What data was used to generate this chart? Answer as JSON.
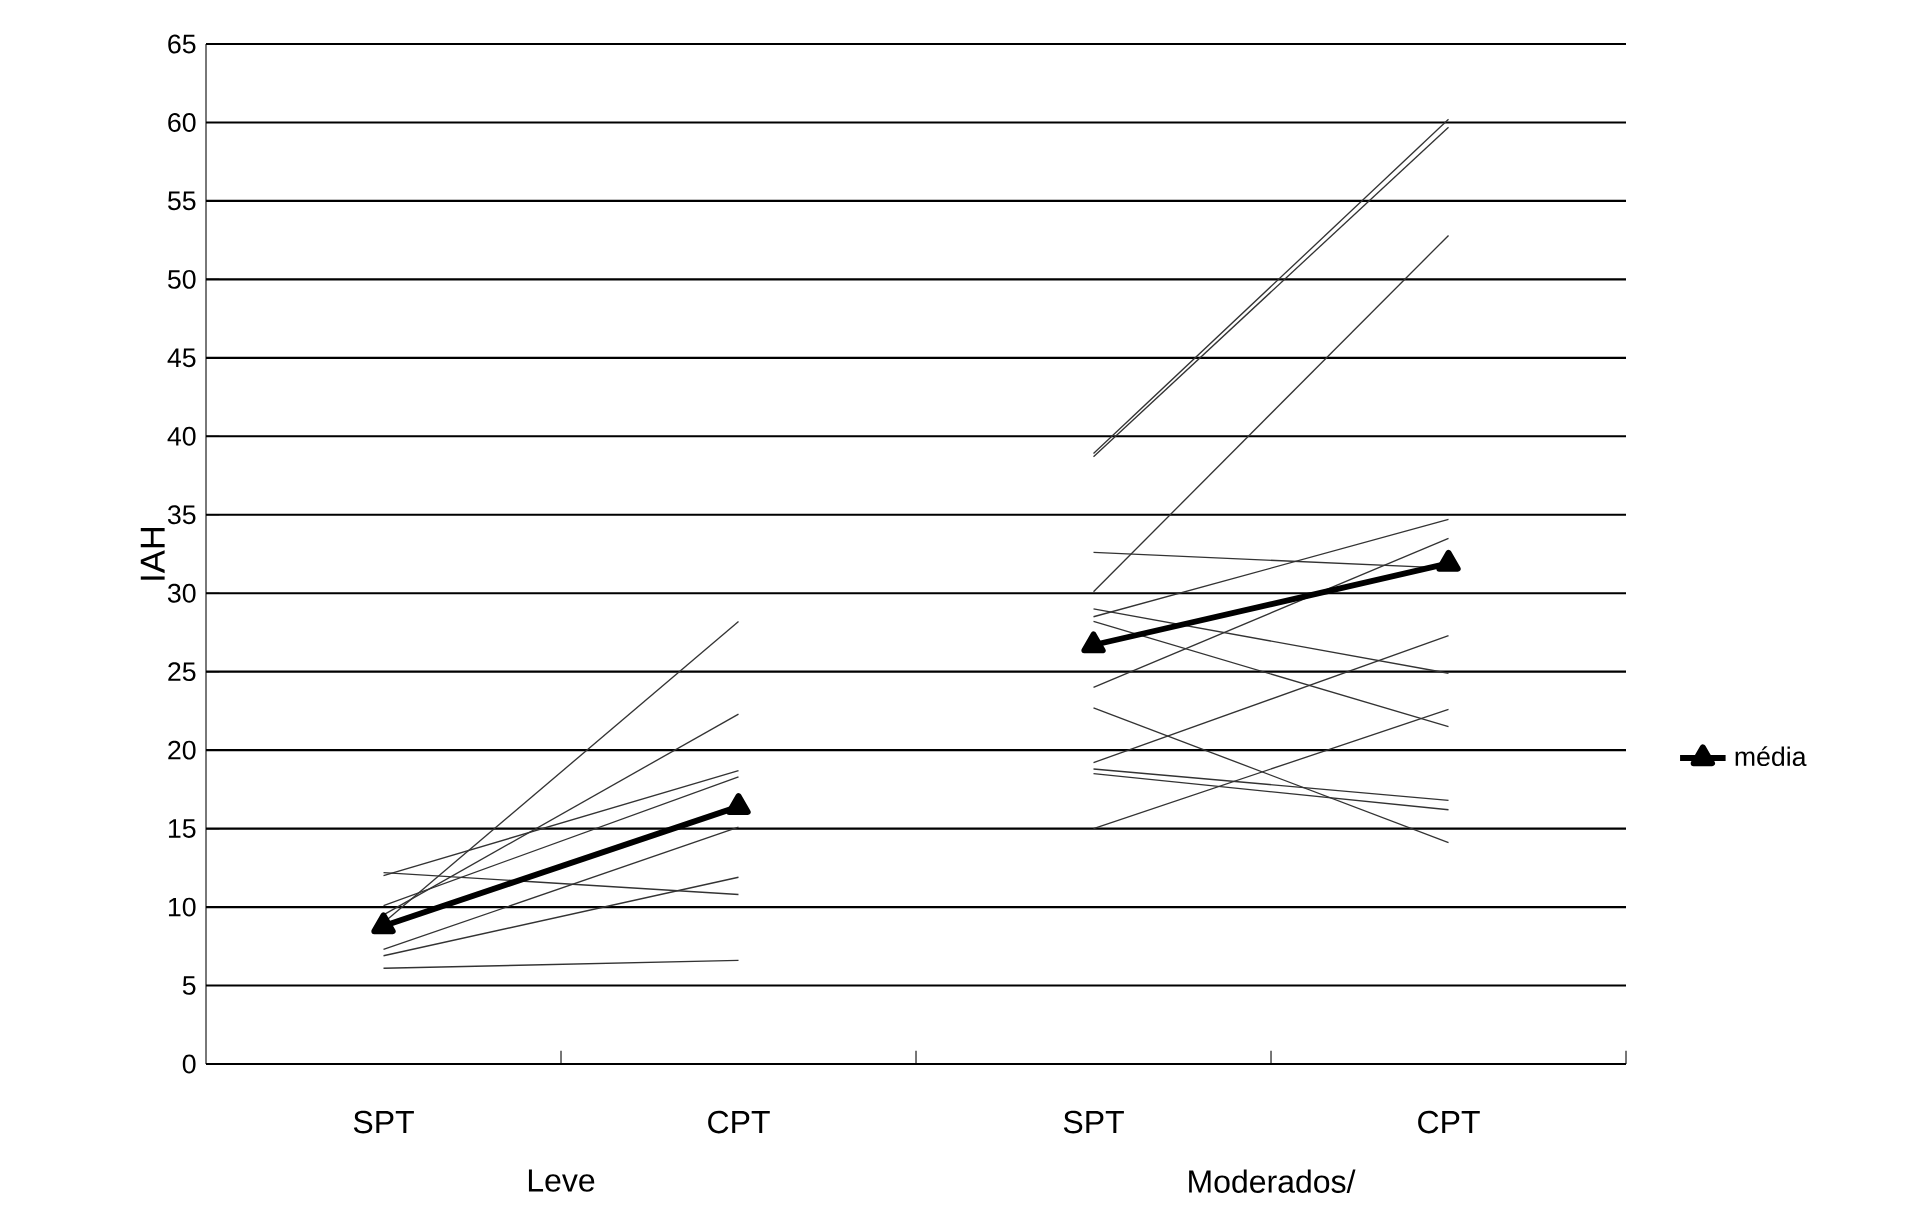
{
  "chart_data": {
    "type": "line",
    "ylabel": "IAH",
    "categories": [
      "SPT",
      "CPT",
      "SPT",
      "CPT"
    ],
    "annotations": [
      "Leve",
      "Moderados/"
    ],
    "ylim": [
      0,
      65
    ],
    "yticks": [
      0,
      5,
      10,
      15,
      20,
      25,
      30,
      35,
      40,
      45,
      50,
      55,
      60,
      65
    ],
    "grid": "y",
    "legend": "right",
    "marker": "none",
    "series": [
      {
        "color": "#333333",
        "values": [
          12.2,
          10.8,
          null,
          null
        ]
      },
      {
        "color": "#333333",
        "values": [
          12.0,
          18.7,
          null,
          null
        ]
      },
      {
        "color": "#333333",
        "values": [
          10.1,
          18.3,
          null,
          null
        ]
      },
      {
        "color": "#333333",
        "values": [
          9.5,
          22.3,
          null,
          null
        ]
      },
      {
        "color": "#333333",
        "values": [
          9.0,
          28.2,
          null,
          null
        ]
      },
      {
        "color": "#333333",
        "values": [
          7.3,
          15.1,
          null,
          null
        ]
      },
      {
        "color": "#333333",
        "values": [
          6.9,
          11.9,
          null,
          null
        ]
      },
      {
        "color": "#333333",
        "values": [
          6.1,
          6.6,
          null,
          null
        ]
      },
      {
        "color": "#333333",
        "values": [
          null,
          null,
          38.9,
          60.2
        ]
      },
      {
        "color": "#333333",
        "values": [
          null,
          null,
          38.7,
          59.7
        ]
      },
      {
        "color": "#333333",
        "values": [
          null,
          null,
          30.1,
          52.8
        ]
      },
      {
        "color": "#333333",
        "values": [
          null,
          null,
          32.6,
          31.6
        ]
      },
      {
        "color": "#333333",
        "values": [
          null,
          null,
          29.0,
          24.9
        ]
      },
      {
        "color": "#333333",
        "values": [
          null,
          null,
          28.5,
          34.7
        ]
      },
      {
        "color": "#333333",
        "values": [
          null,
          null,
          28.2,
          21.5
        ]
      },
      {
        "color": "#333333",
        "values": [
          null,
          null,
          24.0,
          33.5
        ]
      },
      {
        "color": "#333333",
        "values": [
          null,
          null,
          22.7,
          14.1
        ]
      },
      {
        "color": "#333333",
        "values": [
          null,
          null,
          19.2,
          27.3
        ]
      },
      {
        "color": "#333333",
        "values": [
          null,
          null,
          18.8,
          16.8
        ]
      },
      {
        "color": "#333333",
        "values": [
          null,
          null,
          18.5,
          16.2
        ]
      },
      {
        "color": "#333333",
        "values": [
          null,
          null,
          15.0,
          22.6
        ]
      },
      {
        "name": "média",
        "color": "#000000",
        "marker": "triangle",
        "values": [
          8.8,
          16.4,
          null,
          null
        ]
      },
      {
        "color": "#000000",
        "marker": "triangle",
        "values": [
          null,
          null,
          26.7,
          31.9
        ]
      }
    ]
  }
}
